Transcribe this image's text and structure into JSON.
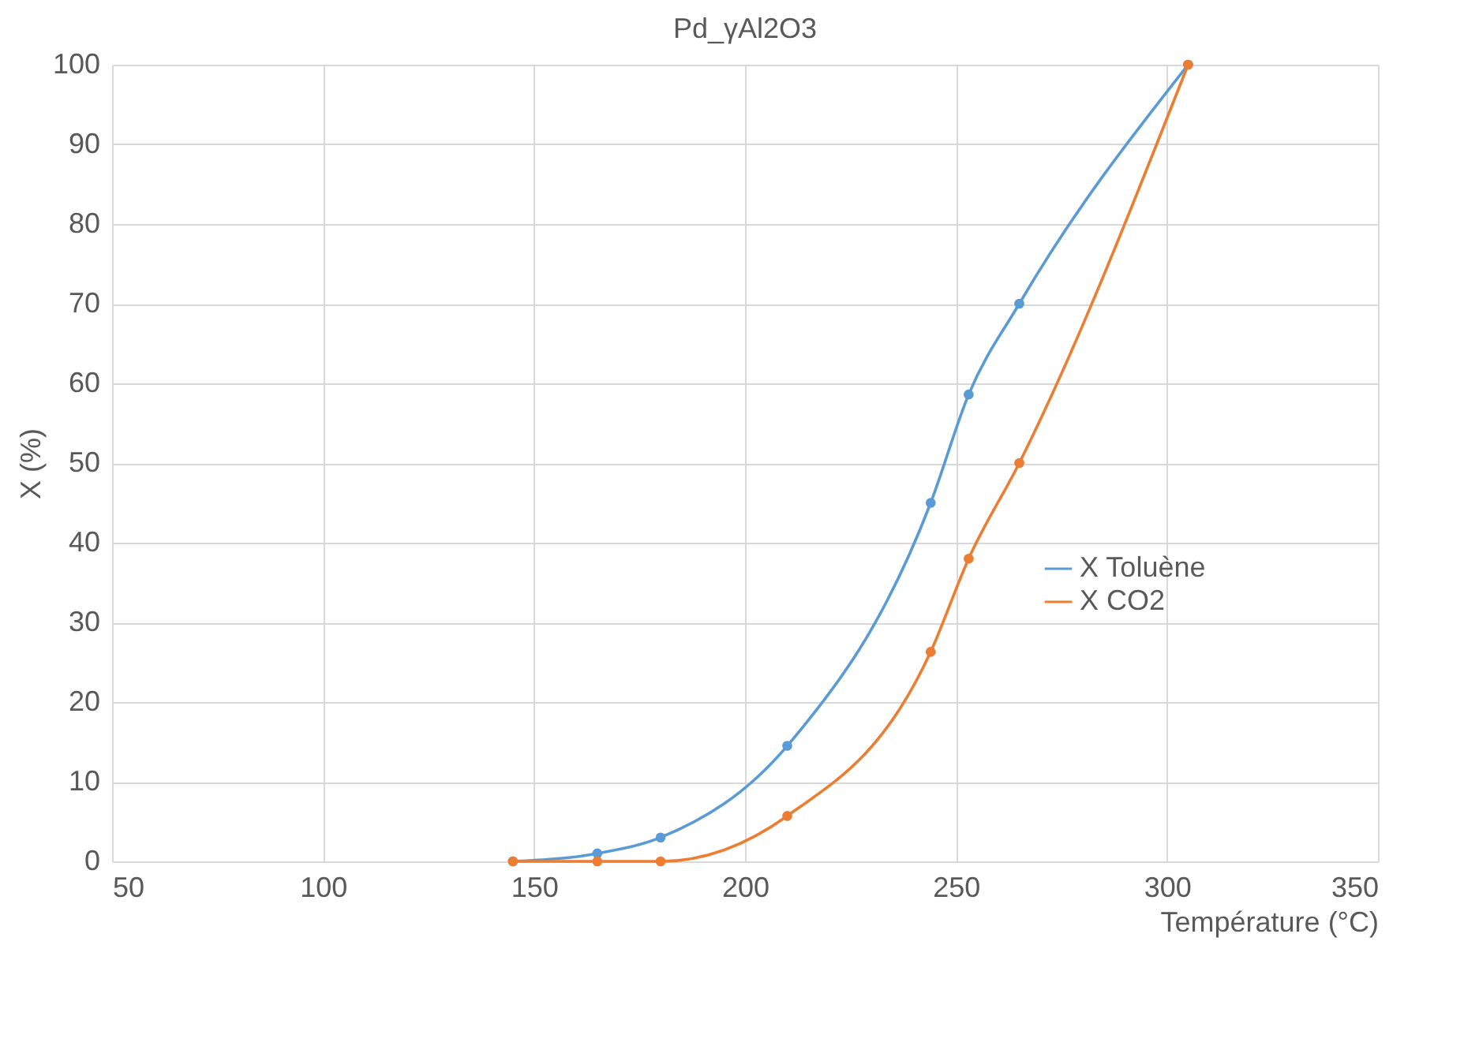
{
  "chart_data": {
    "type": "line",
    "title": "Pd_γAl2O3",
    "xlabel": "Température (°C)",
    "ylabel": "X (%)",
    "xlim": [
      50,
      350
    ],
    "xticks": [
      50,
      100,
      150,
      200,
      250,
      300,
      350
    ],
    "ylim": [
      0,
      100
    ],
    "yticks": [
      0,
      10,
      20,
      30,
      40,
      50,
      60,
      70,
      80,
      90,
      100
    ],
    "grid": true,
    "legend": "right",
    "marker": "circle",
    "line_style": "solid",
    "series": [
      {
        "name": "X Toluène",
        "color": "#5b9bd5",
        "x": [
          145,
          165,
          180,
          210,
          244,
          253,
          265,
          305
        ],
        "values": [
          0,
          1,
          3,
          14.5,
          45,
          58.6,
          70,
          100
        ]
      },
      {
        "name": "X CO2",
        "color": "#ed7d31",
        "x": [
          145,
          165,
          180,
          210,
          244,
          253,
          265,
          305
        ],
        "values": [
          0,
          0,
          0,
          5.7,
          26.3,
          38,
          50,
          100
        ]
      }
    ]
  }
}
